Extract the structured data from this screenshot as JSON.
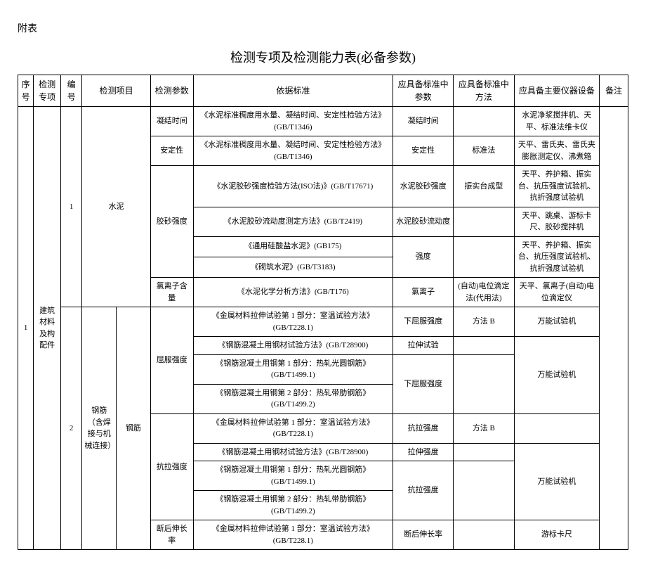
{
  "header_label": "附表",
  "title": "检测专项及检测能力表(必备参数)",
  "columns": {
    "seq": "序号",
    "special": "检测专项",
    "num": "编号",
    "item": "检测项目",
    "param": "检测参数",
    "standard": "依据标准",
    "stdparam": "应具备标准中参数",
    "stdmethod": "应具备标准中方法",
    "equip": "应具备主要仪器设备",
    "remark": "备注"
  },
  "seq_1": "1",
  "special_1": "建筑材料及构配件",
  "num_1": "1",
  "num_2": "2",
  "subspecial_2": "钢筋（含焊接与机械连接）",
  "item_1": "水泥",
  "item_2": "钢筋",
  "r1": {
    "param": "凝结时间",
    "standard": "《水泥标准稠度用水量、凝结时间、安定性检验方法》(GB/T1346)",
    "stdparam": "凝结时间",
    "stdmethod": "",
    "equip": "水泥净浆搅拌机、天平、标准法维卡仪"
  },
  "r2": {
    "param": "安定性",
    "standard": "《水泥标准稠度用水量、凝结时间、安定性检验方法》(GB/T1346)",
    "stdparam": "安定性",
    "stdmethod": "标准法",
    "equip": "天平、雷氏夹、雷氏夹膨胀测定仪、沸煮箱"
  },
  "r3": {
    "param": "胶砂强度",
    "standard_a": "《水泥胶砂强度检验方法(ISO法)》(GB/T17671)",
    "stdparam_a": "水泥胶砂强度",
    "stdmethod_a": "振实台成型",
    "equip_a": "天平、养护箱、振实台、抗压强度试验机、抗折强度试验机",
    "standard_b": "《水泥胶砂流动度测定方法》(GB/T2419)",
    "stdparam_b": "水泥胶砂流动度",
    "stdmethod_b": "",
    "equip_b": "天平、跳桌、游标卡尺、胶砂搅拌机",
    "standard_c": "《通用硅酸盐水泥》(GB175)",
    "standard_d": "《砌筑水泥》(GB/T3183)",
    "stdparam_cd": "强度",
    "stdmethod_cd": "",
    "equip_cd": "天平、养护箱、振实台、抗压强度试验机、抗折强度试验机"
  },
  "r4": {
    "param": "氯离子含量",
    "standard": "《水泥化学分析方法》(GB/T176)",
    "stdparam": "氯离子",
    "stdmethod": "(自动)电位滴定法(代用法)",
    "equip": "天平、氯离子(自动)电位滴定仪"
  },
  "r5": {
    "param": "屈服强度",
    "standard_a": "《金属材料拉伸试验第 1 部分：室温试验方法》(GB/T228.1)",
    "stdparam_a": "下屈服强度",
    "stdmethod_a": "方法 B",
    "equip_a": "万能试验机",
    "standard_b": "《钢筋混凝土用钢材试验方法》(GB/T28900)",
    "stdparam_b": "拉伸试验",
    "stdmethod_b": "",
    "standard_c": "《钢筋混凝土用钢第 1 部分：热轧光圆钢筋》(GB/T1499.1)",
    "standard_d": "《钢筋混凝土用钢第 2 部分：热轧带肋钢筋》(GB/T1499.2)",
    "stdparam_cd": "下屈服强度",
    "stdmethod_cd": "",
    "equip_bcd": "万能试验机"
  },
  "r6": {
    "param": "抗拉强度",
    "standard_a": "《金属材料拉伸试验第 1 部分：室温试验方法》(GB/T228.1)",
    "stdparam_a": "抗拉强度",
    "stdmethod_a": "方法 B",
    "equip_a": "",
    "standard_b": "《钢筋混凝土用钢材试验方法》(GB/T28900)",
    "stdparam_b": "拉伸强度",
    "stdmethod_b": "",
    "standard_c": "《钢筋混凝土用钢第 1 部分：热轧光圆钢筋》(GB/T1499.1)",
    "standard_d": "《钢筋混凝土用钢第 2 部分：热轧带肋钢筋》(GB/T1499.2)",
    "stdparam_cd": "抗拉强度",
    "stdmethod_cd": "",
    "equip_bcd": "万能试验机"
  },
  "r7": {
    "param": "断后伸长率",
    "standard": "《金属材料拉伸试验第 1 部分：室温试验方法》(GB/T228.1)",
    "stdparam": "断后伸长率",
    "stdmethod": "",
    "equip": "游标卡尺"
  }
}
